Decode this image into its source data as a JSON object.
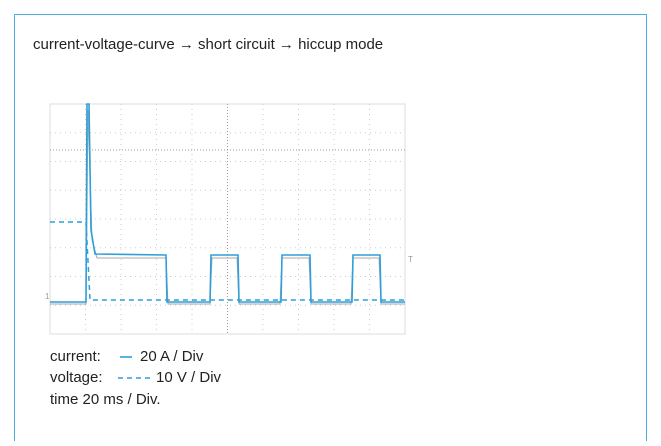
{
  "header": {
    "title": "current-voltage-curve → short circuit → hiccup mode"
  },
  "scope": {
    "trigger_marker": "T",
    "channel_marker": "1"
  },
  "legend": {
    "current": {
      "label": "current:",
      "scale": "20 A / Div"
    },
    "voltage": {
      "label": "voltage:",
      "scale": "10 V / Div"
    },
    "time": "time 20 ms / Div."
  }
}
